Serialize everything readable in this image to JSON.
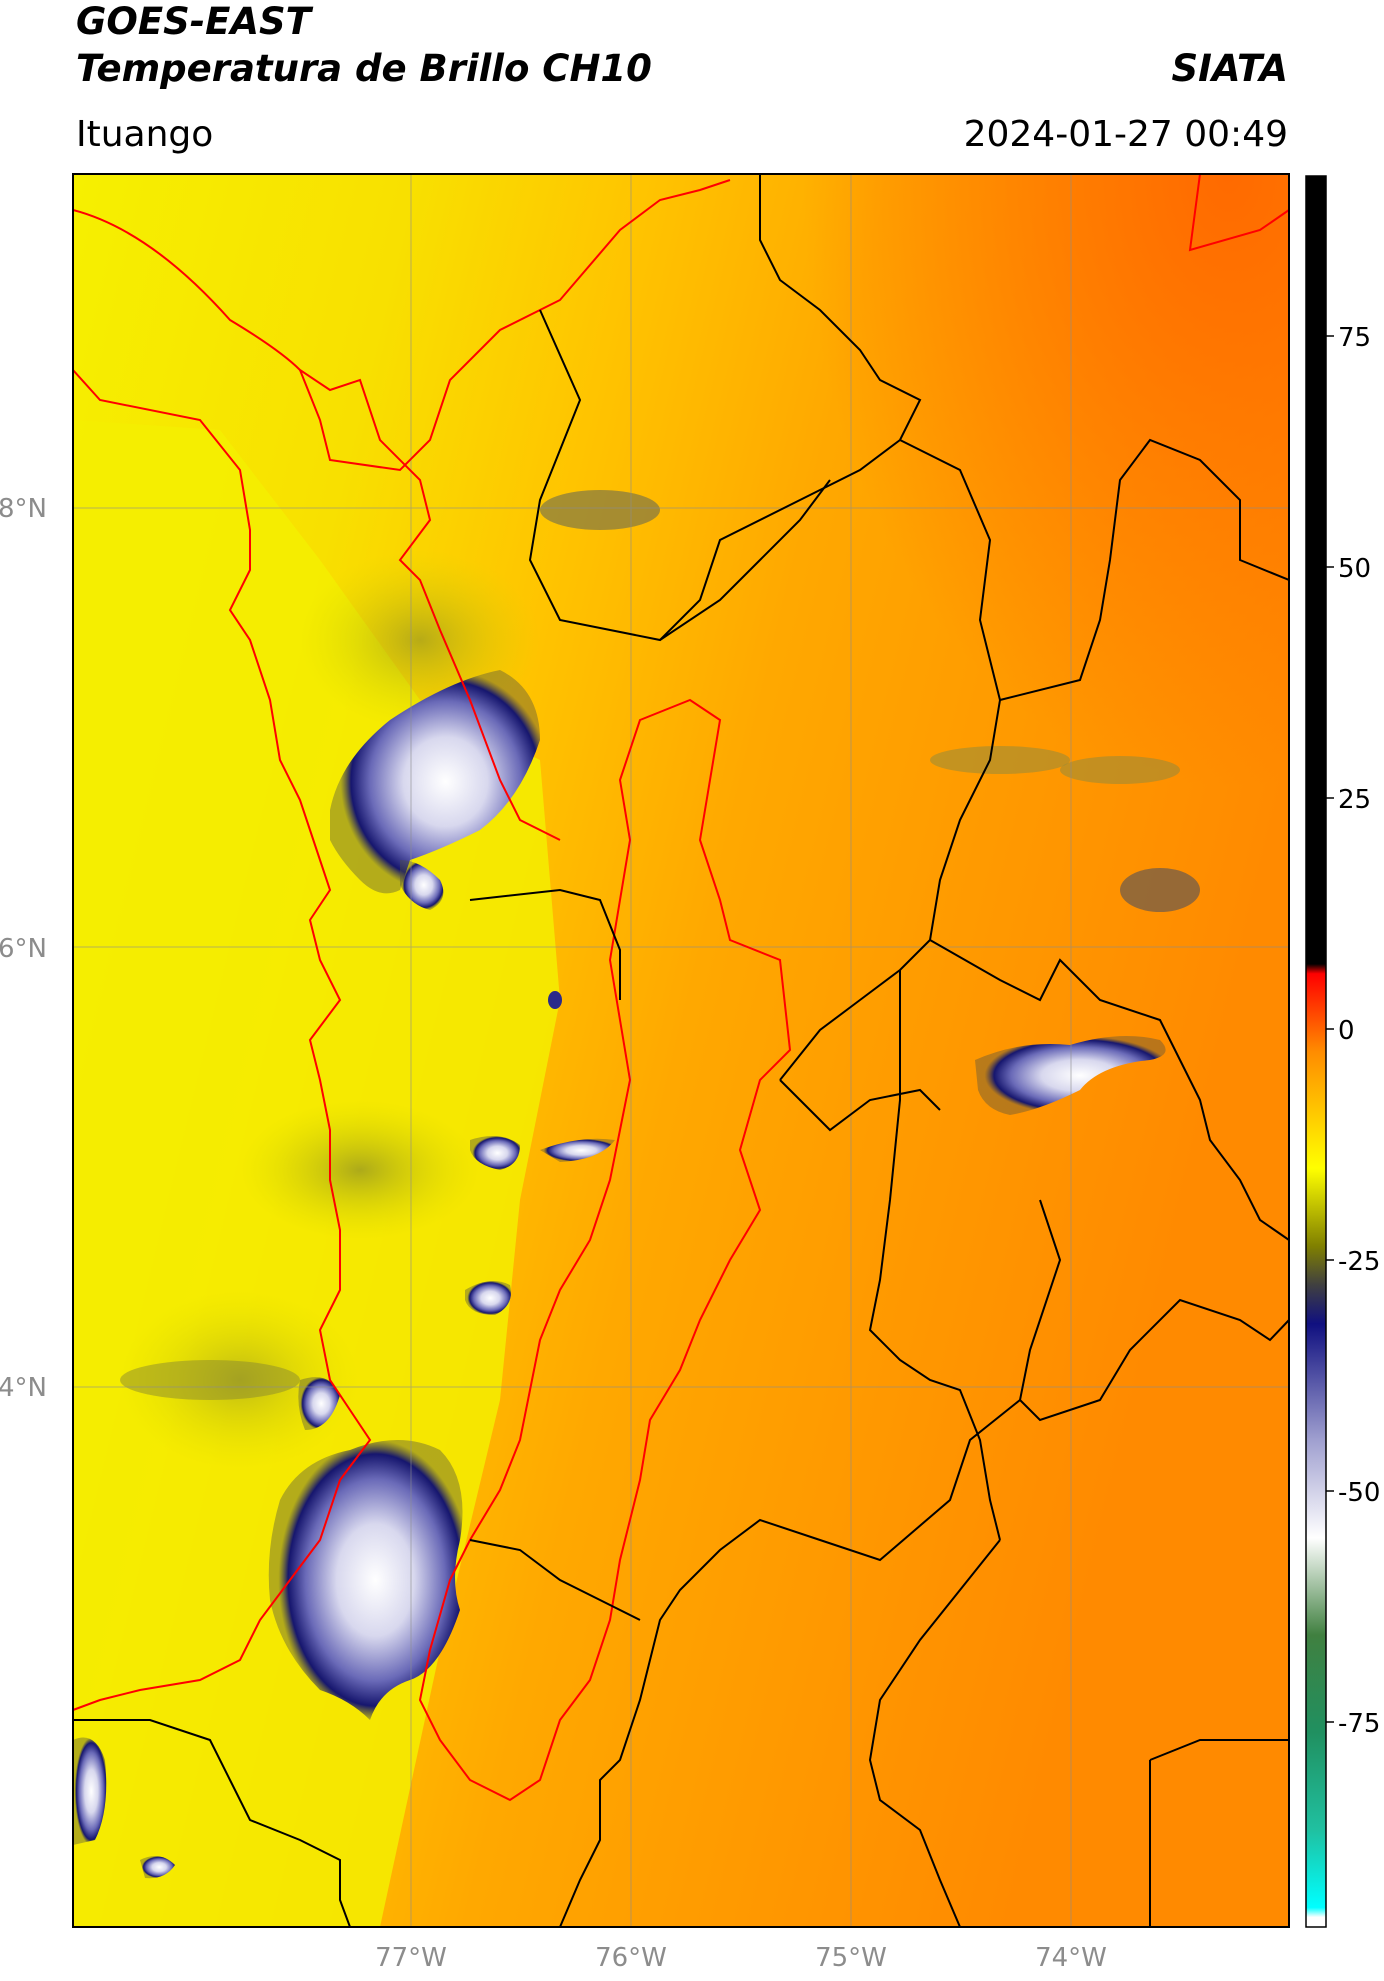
{
  "header": {
    "satellite": "GOES-EAST",
    "product": "Temperatura de Brillo CH10",
    "agency": "SIATA",
    "region": "Ituango",
    "datetime": "2024-01-27 00:49"
  },
  "map": {
    "lat_labels": [
      "8°N",
      "6°N",
      "4°N"
    ],
    "lon_labels": [
      "77°W",
      "76°W",
      "75°W",
      "74°W"
    ],
    "colors": {
      "background_warm": "#ff9a00",
      "background_yellow": "#f5f000",
      "cloud_blue": "#1a1a8a",
      "cloud_white": "#f2f2f2",
      "country_border": "#ff0000",
      "admin_border": "#000000",
      "grid": "#9a9a9a"
    }
  },
  "colorbar": {
    "tick_labels": [
      "75",
      "50",
      "25",
      "0",
      "-25",
      "-50",
      "-75"
    ],
    "stops": [
      {
        "value": 90,
        "color": "#000000"
      },
      {
        "value": 9,
        "color": "#000000"
      },
      {
        "value": 8,
        "color": "#ff0000"
      },
      {
        "value": 0,
        "color": "#ff8c00"
      },
      {
        "value": -12,
        "color": "#ffff00"
      },
      {
        "value": -20,
        "color": "#808000"
      },
      {
        "value": -24,
        "color": "#404040"
      },
      {
        "value": -28,
        "color": "#101080"
      },
      {
        "value": -40,
        "color": "#a0a0d0"
      },
      {
        "value": -50,
        "color": "#ffffff"
      },
      {
        "value": -60,
        "color": "#408040"
      },
      {
        "value": -70,
        "color": "#209060"
      },
      {
        "value": -80,
        "color": "#20c0a0"
      },
      {
        "value": -88,
        "color": "#00ffff"
      },
      {
        "value": -89,
        "color": "#ffffff"
      }
    ]
  }
}
